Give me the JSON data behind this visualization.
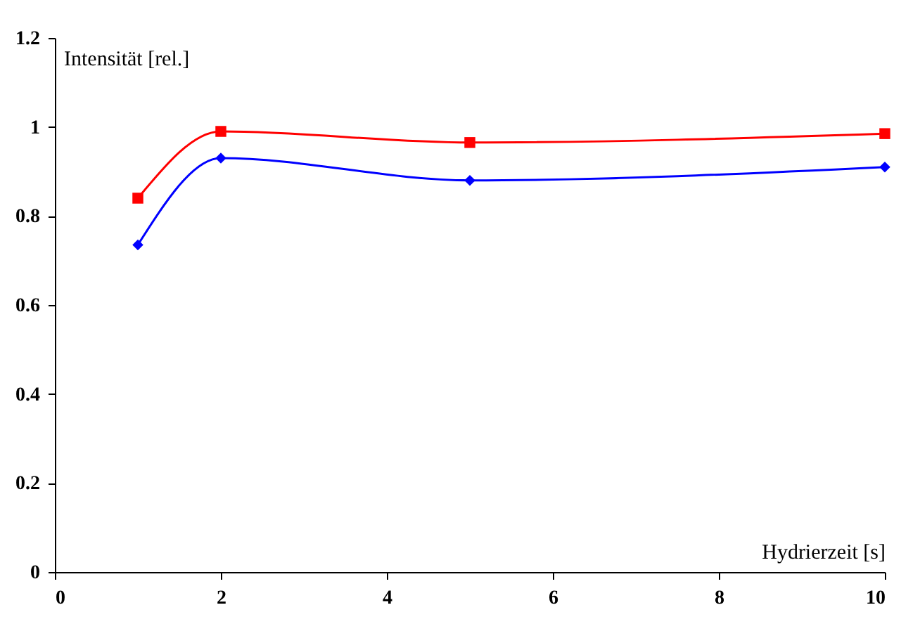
{
  "chart_data": {
    "type": "line",
    "xlabel": "Hydrierzeit [s]",
    "ylabel": "Intensität [rel.]",
    "xlim": [
      0,
      10
    ],
    "xticks": [
      0,
      2,
      4,
      6,
      8,
      10
    ],
    "ylim": [
      0,
      1.2
    ],
    "yticks": [
      0,
      0.2,
      0.4,
      0.6,
      0.8,
      1,
      1.2
    ],
    "grid": false,
    "x": [
      1,
      2,
      5,
      10
    ],
    "series": [
      {
        "color": "#ff0000",
        "marker": "square",
        "values": [
          0.84,
          0.99,
          0.965,
          0.985
        ]
      },
      {
        "color": "#0000ff",
        "marker": "diamond",
        "values": [
          0.735,
          0.93,
          0.88,
          0.91
        ]
      }
    ]
  }
}
